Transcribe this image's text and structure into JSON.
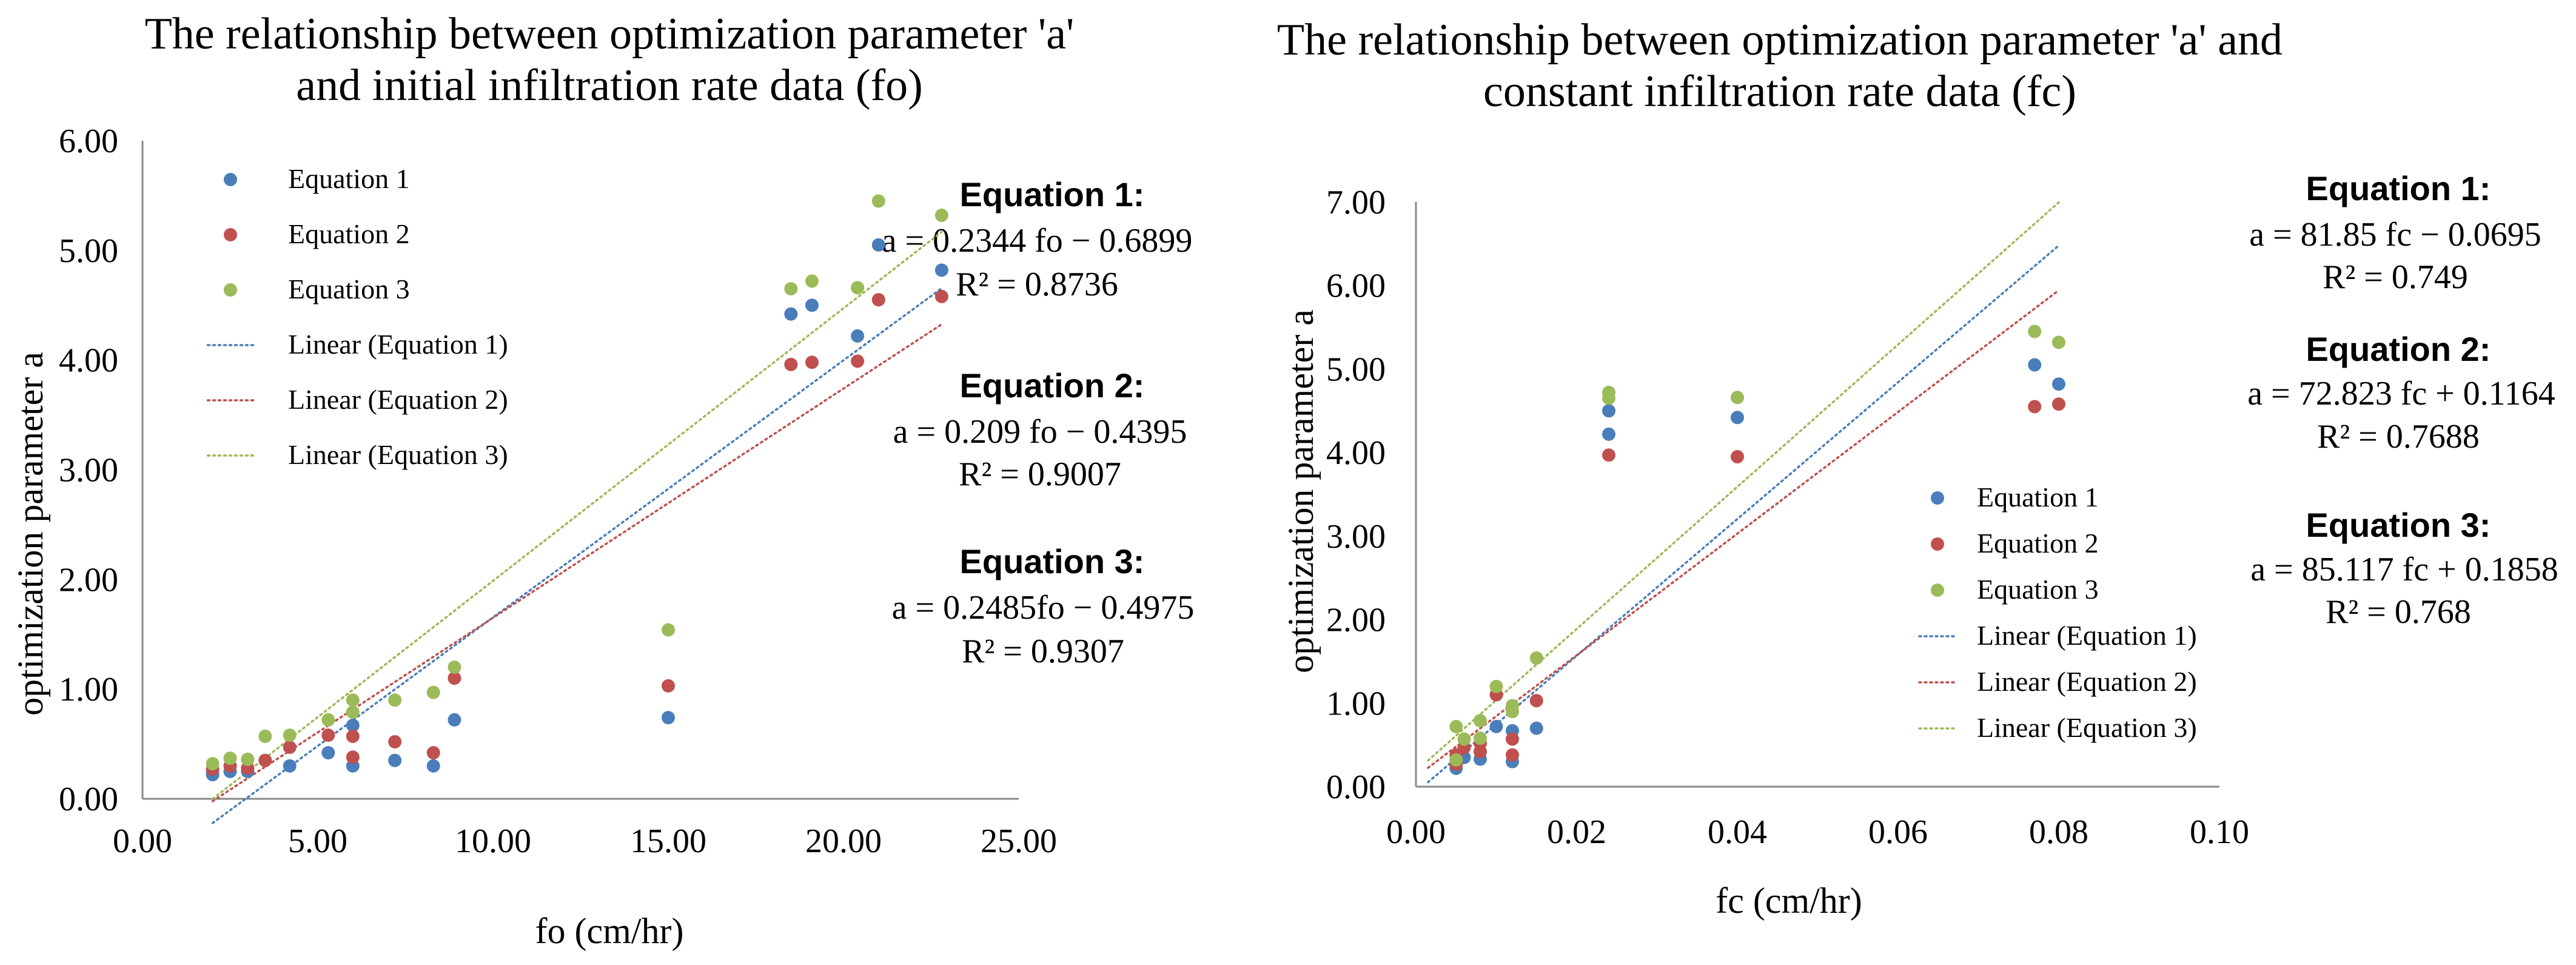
{
  "chart_data": [
    {
      "type": "scatter",
      "title": [
        "The relationship between optimization parameter 'a'",
        "and initial infiltration rate data (fo)"
      ],
      "xlabel": "fo (cm/hr)",
      "ylabel": "optimization parameter a",
      "xlim": [
        0,
        25
      ],
      "ylim": [
        0,
        6
      ],
      "xticks": [
        "0.00",
        "5.00",
        "10.00",
        "15.00",
        "20.00",
        "25.00"
      ],
      "yticks": [
        "0.00",
        "1.00",
        "2.00",
        "3.00",
        "4.00",
        "5.00",
        "6.00"
      ],
      "legend": [
        "Equation 1",
        "Equation 2",
        "Equation 3",
        "Linear (Equation 1)",
        "Linear (Equation 2)",
        "Linear (Equation 3)"
      ],
      "series": [
        {
          "name": "Equation 1",
          "color": "#4a7ebb",
          "x": [
            2.0,
            2.0,
            2.5,
            3.0,
            3.5,
            4.2,
            5.3,
            6.0,
            6.0,
            7.2,
            8.3,
            8.9,
            15.0,
            18.5,
            19.1,
            20.4,
            21.0,
            22.8
          ],
          "y": [
            0.22,
            0.25,
            0.25,
            0.25,
            0.35,
            0.3,
            0.42,
            0.3,
            0.67,
            0.35,
            0.3,
            0.72,
            0.74,
            4.42,
            4.5,
            4.22,
            5.05,
            4.82
          ]
        },
        {
          "name": "Equation 2",
          "color": "#c0504d",
          "x": [
            2.0,
            2.5,
            3.0,
            3.5,
            4.2,
            5.3,
            6.0,
            6.0,
            7.2,
            8.3,
            8.9,
            15.0,
            18.5,
            19.1,
            20.4,
            21.0,
            22.8
          ],
          "y": [
            0.27,
            0.3,
            0.28,
            0.35,
            0.47,
            0.58,
            0.38,
            0.57,
            0.52,
            0.42,
            1.1,
            1.03,
            3.96,
            3.98,
            3.99,
            4.55,
            4.58
          ]
        },
        {
          "name": "Equation 3",
          "color": "#9bbb59",
          "x": [
            2.0,
            2.5,
            3.0,
            3.5,
            4.2,
            5.3,
            6.0,
            6.0,
            7.2,
            8.3,
            8.9,
            15.0,
            18.5,
            19.1,
            20.4,
            21.0,
            22.8
          ],
          "y": [
            0.32,
            0.37,
            0.36,
            0.57,
            0.58,
            0.72,
            0.79,
            0.9,
            0.9,
            0.97,
            1.2,
            1.54,
            4.65,
            4.72,
            4.66,
            5.45,
            5.32
          ]
        }
      ],
      "trendlines": [
        {
          "name": "Linear (Equation 1)",
          "color": "#4a7ebb",
          "slope": 0.2344,
          "intercept": -0.6899,
          "x_range": [
            2.0,
            22.8
          ]
        },
        {
          "name": "Linear (Equation 2)",
          "color": "#c0504d",
          "slope": 0.209,
          "intercept": -0.4395,
          "x_range": [
            2.0,
            22.8
          ]
        },
        {
          "name": "Linear (Equation 3)",
          "color": "#9bbb59",
          "slope": 0.2485,
          "intercept": -0.4975,
          "x_range": [
            2.0,
            22.8
          ]
        }
      ],
      "annotations": [
        {
          "head": "Equation 1:",
          "eq": "a = 0.2344 fo − 0.6899",
          "r2": "R² = 0.8736"
        },
        {
          "head": "Equation 2:",
          "eq": "a = 0.209 fo − 0.4395",
          "r2": "R² = 0.9007"
        },
        {
          "head": "Equation 3:",
          "eq": "a = 0.2485fo − 0.4975",
          "r2": "R² = 0.9307"
        }
      ]
    },
    {
      "type": "scatter",
      "title": [
        "The relationship between optimization parameter 'a' and",
        "constant infiltration rate data (fc)"
      ],
      "xlabel": "fc (cm/hr)",
      "ylabel": "optimization parameter a",
      "xlim": [
        0,
        0.1
      ],
      "ylim": [
        0,
        7
      ],
      "xticks": [
        "0.00",
        "0.02",
        "0.04",
        "0.06",
        "0.08",
        "0.10"
      ],
      "yticks": [
        "0.00",
        "1.00",
        "2.00",
        "3.00",
        "4.00",
        "5.00",
        "6.00",
        "7.00"
      ],
      "legend": [
        "Equation 1",
        "Equation 2",
        "Equation 3",
        "Linear (Equation 1)",
        "Linear (Equation 2)",
        "Linear (Equation 3)"
      ],
      "series": [
        {
          "name": "Equation 1",
          "color": "#4a7ebb",
          "x": [
            0.005,
            0.005,
            0.006,
            0.008,
            0.008,
            0.01,
            0.012,
            0.012,
            0.015,
            0.024,
            0.024,
            0.04,
            0.077,
            0.08
          ],
          "y": [
            0.22,
            0.28,
            0.35,
            0.33,
            0.42,
            0.72,
            0.3,
            0.67,
            0.7,
            4.22,
            4.5,
            4.42,
            5.05,
            4.82
          ]
        },
        {
          "name": "Equation 2",
          "color": "#c0504d",
          "x": [
            0.005,
            0.005,
            0.006,
            0.008,
            0.008,
            0.01,
            0.012,
            0.012,
            0.015,
            0.024,
            0.04,
            0.077,
            0.08
          ],
          "y": [
            0.27,
            0.38,
            0.47,
            0.42,
            0.52,
            1.1,
            0.38,
            0.57,
            1.03,
            3.97,
            3.95,
            4.55,
            4.58
          ]
        },
        {
          "name": "Equation 3",
          "color": "#9bbb59",
          "x": [
            0.005,
            0.005,
            0.006,
            0.008,
            0.008,
            0.01,
            0.012,
            0.012,
            0.015,
            0.024,
            0.024,
            0.04,
            0.077,
            0.08
          ],
          "y": [
            0.32,
            0.72,
            0.57,
            0.58,
            0.79,
            1.2,
            0.9,
            0.97,
            1.54,
            4.65,
            4.72,
            4.66,
            5.45,
            5.32
          ]
        }
      ],
      "trendlines": [
        {
          "name": "Linear (Equation 1)",
          "color": "#4a7ebb",
          "slope": 81.85,
          "intercept": -0.0695,
          "x_range": [
            0.0015,
            0.08
          ]
        },
        {
          "name": "Linear (Equation 2)",
          "color": "#c0504d",
          "slope": 72.823,
          "intercept": 0.1164,
          "x_range": [
            0.0015,
            0.08
          ]
        },
        {
          "name": "Linear (Equation 3)",
          "color": "#9bbb59",
          "slope": 85.117,
          "intercept": 0.1858,
          "x_range": [
            0.0015,
            0.08
          ]
        }
      ],
      "annotations": [
        {
          "head": "Equation 1:",
          "eq": "a = 81.85 fc − 0.0695",
          "r2": "R² = 0.749"
        },
        {
          "head": "Equation 2:",
          "eq": "a = 72.823 fc + 0.1164",
          "r2": "R² = 0.7688"
        },
        {
          "head": "Equation 3:",
          "eq": "a = 85.117 fc + 0.1858",
          "r2": "R² = 0.768"
        }
      ]
    }
  ]
}
